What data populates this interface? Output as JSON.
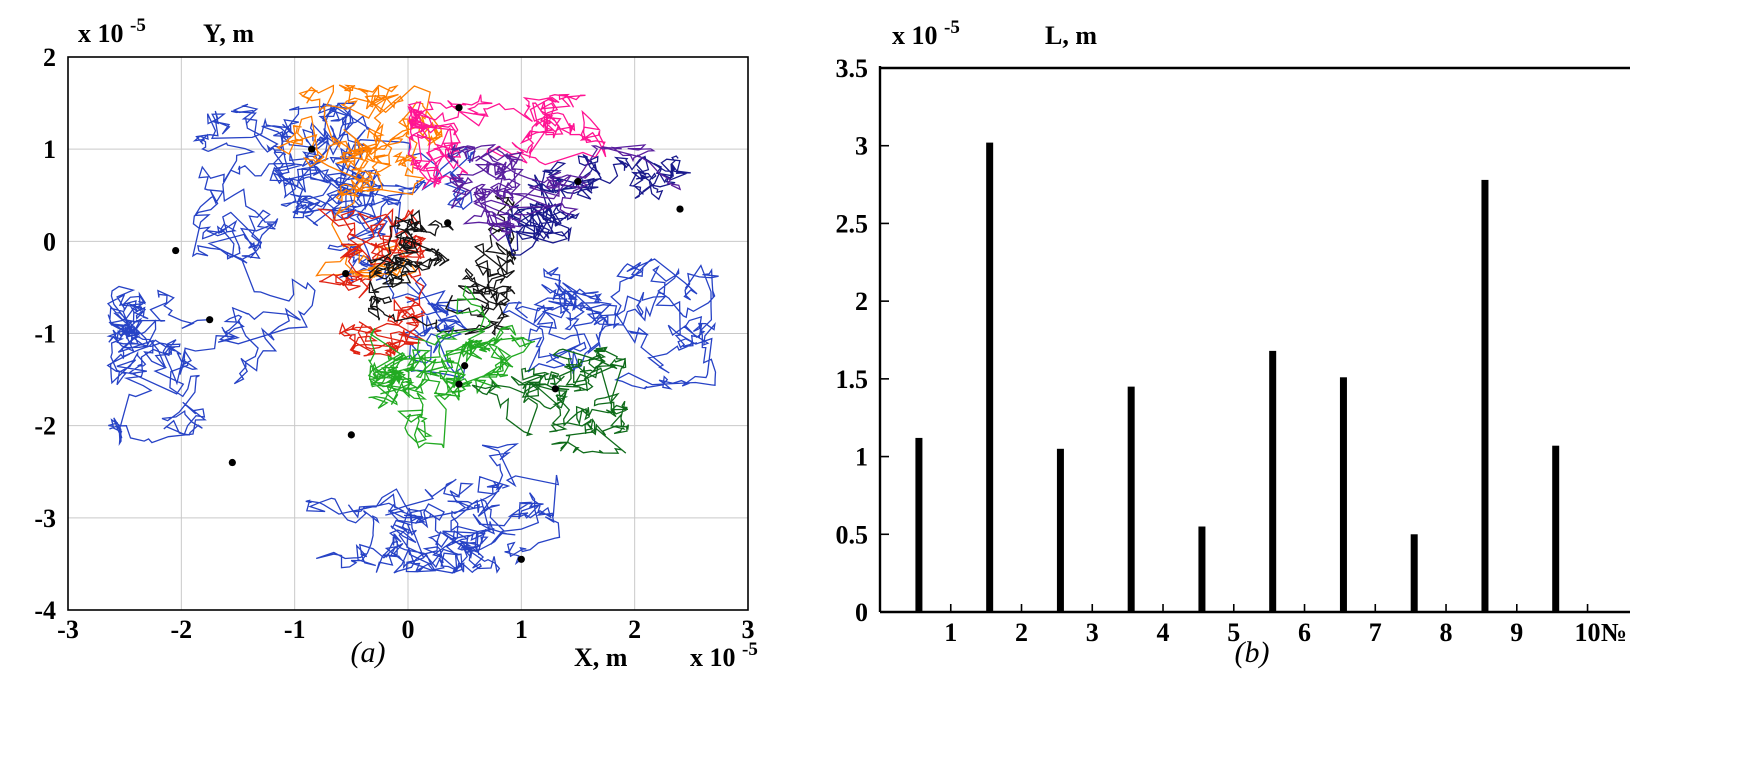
{
  "figure": {
    "background": "#ffffff"
  },
  "chart_data": [
    {
      "type": "line",
      "subtype": "brownian-trajectories",
      "caption": "(a)",
      "xlabel": "X, m",
      "ylabel": "Y, m",
      "scale_label": "x 10",
      "scale_exponent": "-5",
      "xlim": [
        -3,
        3
      ],
      "ylim": [
        -4,
        2
      ],
      "xticks": [
        -3,
        -2,
        -1,
        0,
        1,
        2,
        3
      ],
      "yticks": [
        -4,
        -3,
        -2,
        -1,
        0,
        1,
        2
      ],
      "grid": true,
      "grid_color": "#c9c9c9",
      "axis_color": "#000000",
      "marker_color": "#000000",
      "series": [
        {
          "name": "blue-main",
          "color": "#2743c6",
          "start": [
            -1.75,
            -0.85
          ],
          "bounds": [
            -2.65,
            0.6,
            -2.6,
            1.4
          ],
          "steps": 700,
          "step": 0.1,
          "seed": 11
        },
        {
          "name": "blue-bottom",
          "color": "#2743c6",
          "start": [
            1.0,
            -3.45
          ],
          "bounds": [
            -1.3,
            1.5,
            -3.6,
            -0.9
          ],
          "steps": 450,
          "step": 0.1,
          "seed": 22
        },
        {
          "name": "blue-right",
          "color": "#2743c6",
          "start": [
            2.55,
            -1.1
          ],
          "bounds": [
            0.8,
            2.75,
            -1.6,
            0.4
          ],
          "steps": 350,
          "step": 0.09,
          "seed": 33
        },
        {
          "name": "blue-upper",
          "color": "#2743c6",
          "start": [
            -0.85,
            1.0
          ],
          "bounds": [
            -1.9,
            0.3,
            -0.2,
            1.5
          ],
          "steps": 400,
          "step": 0.09,
          "seed": 44
        },
        {
          "name": "orange",
          "color": "#ff7d00",
          "start": [
            -0.35,
            1.62
          ],
          "bounds": [
            -1.6,
            0.3,
            -0.4,
            1.7
          ],
          "steps": 380,
          "step": 0.09,
          "seed": 55
        },
        {
          "name": "red",
          "color": "#e02212",
          "start": [
            -0.55,
            -0.35
          ],
          "bounds": [
            -1.5,
            0.15,
            -1.25,
            0.35
          ],
          "steps": 300,
          "step": 0.08,
          "seed": 66
        },
        {
          "name": "magenta",
          "color": "#ff1493",
          "start": [
            0.45,
            1.45
          ],
          "bounds": [
            0.0,
            1.75,
            0.15,
            1.6
          ],
          "steps": 350,
          "step": 0.08,
          "seed": 77
        },
        {
          "name": "black",
          "color": "#141414",
          "start": [
            0.35,
            0.2
          ],
          "bounds": [
            -0.35,
            0.95,
            -1.05,
            0.55
          ],
          "steps": 420,
          "step": 0.07,
          "seed": 88
        },
        {
          "name": "green",
          "color": "#22aa22",
          "start": [
            0.45,
            -1.55
          ],
          "bounds": [
            -0.35,
            1.25,
            -2.25,
            0.35
          ],
          "steps": 380,
          "step": 0.09,
          "seed": 99
        },
        {
          "name": "dark-green",
          "color": "#0f6b1a",
          "start": [
            1.3,
            -1.6
          ],
          "bounds": [
            0.55,
            1.95,
            -2.3,
            -1.15
          ],
          "steps": 300,
          "step": 0.08,
          "seed": 111
        },
        {
          "name": "navy",
          "color": "#1a1a8c",
          "start": [
            1.5,
            0.65
          ],
          "bounds": [
            0.85,
            2.5,
            -0.15,
            0.95
          ],
          "steps": 320,
          "step": 0.08,
          "seed": 122
        },
        {
          "name": "purple",
          "color": "#5a1f9e",
          "start": [
            1.35,
            0.75
          ],
          "bounds": [
            0.35,
            2.45,
            0.0,
            1.05
          ],
          "steps": 300,
          "step": 0.08,
          "seed": 133
        }
      ],
      "start_markers": [
        [
          -2.05,
          -0.1
        ],
        [
          -1.75,
          -0.85
        ],
        [
          -1.55,
          -2.4
        ],
        [
          -0.85,
          1.0
        ],
        [
          -0.55,
          -0.35
        ],
        [
          -0.5,
          -2.1
        ],
        [
          0.35,
          0.2
        ],
        [
          0.45,
          1.45
        ],
        [
          0.45,
          -1.55
        ],
        [
          0.5,
          -1.35
        ],
        [
          1.0,
          -3.45
        ],
        [
          1.3,
          -1.6
        ],
        [
          1.5,
          0.65
        ],
        [
          2.4,
          0.35
        ]
      ]
    },
    {
      "type": "bar",
      "caption": "(b)",
      "ylabel": "L, m",
      "xlabel": "№",
      "scale_label": "x 10",
      "scale_exponent": "-5",
      "categories": [
        1,
        2,
        3,
        4,
        5,
        6,
        7,
        8,
        9,
        10
      ],
      "values": [
        1.12,
        3.02,
        1.05,
        1.45,
        0.55,
        1.68,
        1.51,
        0.5,
        2.78,
        1.07
      ],
      "xlim": [
        0,
        10.6
      ],
      "ylim": [
        0,
        3.5
      ],
      "yticks": [
        0,
        0.5,
        1,
        1.5,
        2,
        2.5,
        3,
        3.5
      ],
      "bar_color": "#000000",
      "bar_offset": -0.45,
      "axis_color": "#000000"
    }
  ]
}
